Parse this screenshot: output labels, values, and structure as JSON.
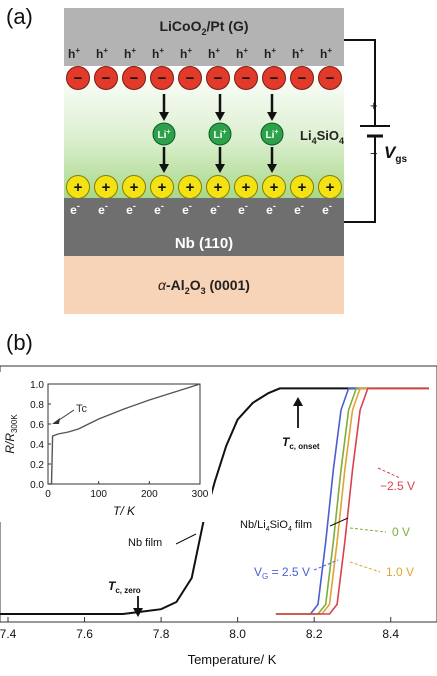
{
  "panel_a": {
    "label": "(a)",
    "top_layer": "LiCoO",
    "top_layer_sub": "2",
    "top_layer_tail": "/Pt (G)",
    "hole_glyph": "h",
    "hole_sup": "+",
    "anion_glyph": "−",
    "cation_label": "Li",
    "cation_sup": "+",
    "electrolyte": "Li",
    "electrolyte_sub": "4",
    "electrolyte_mid": "SiO",
    "electrolyte_sub2": "4",
    "cation_row_glyph": "+",
    "electron_glyph": "e",
    "electron_sup": "-",
    "channel_layer": "Nb (110)",
    "substrate_prefix": "α",
    "substrate_main": "-Al",
    "substrate_sub1": "2",
    "substrate_mid": "O",
    "substrate_sub2": "3",
    "substrate_tail": " (0001)",
    "voltage_symbol": "V",
    "voltage_sub": "gs",
    "battery_plus": "+",
    "battery_minus": "−",
    "colors": {
      "top_layer": "#b3b3b3",
      "anion": "#e23a2a",
      "cation": "#2ca14a",
      "cation_row": "#f3e315",
      "channel": "#6f6f6f",
      "substrate": "#f7d3b8"
    }
  },
  "panel_b": {
    "label": "(b)"
  },
  "chart_data": [
    {
      "type": "line",
      "title": "",
      "xlabel": "Temperature/ K",
      "ylabel": "",
      "xlim": [
        7.4,
        8.5
      ],
      "ylim": [
        0,
        1.0
      ],
      "xticks": [
        "7.4",
        "7.6",
        "7.8",
        "8.0",
        "8.2",
        "8.4"
      ],
      "xtick_values": [
        7.4,
        7.6,
        7.8,
        8.0,
        8.2,
        8.4
      ],
      "series": [
        {
          "name": "Nb film",
          "color": "#111111",
          "points": [
            [
              7.38,
              0.0
            ],
            [
              7.5,
              0.0
            ],
            [
              7.6,
              0.0
            ],
            [
              7.7,
              0.0
            ],
            [
              7.75,
              0.01
            ],
            [
              7.8,
              0.02
            ],
            [
              7.84,
              0.05
            ],
            [
              7.88,
              0.15
            ],
            [
              7.91,
              0.38
            ],
            [
              7.94,
              0.55
            ],
            [
              7.97,
              0.7
            ],
            [
              8.0,
              0.81
            ],
            [
              8.04,
              0.88
            ],
            [
              8.08,
              0.92
            ],
            [
              8.11,
              0.94
            ],
            [
              8.2,
              0.94
            ],
            [
              8.3,
              0.94
            ],
            [
              8.4,
              0.94
            ],
            [
              8.5,
              0.94
            ]
          ]
        },
        {
          "name": "V_G = 2.5 V",
          "color": "#4a5fcf",
          "points": [
            [
              8.1,
              0.0
            ],
            [
              8.19,
              0.0
            ],
            [
              8.21,
              0.04
            ],
            [
              8.23,
              0.3
            ],
            [
              8.25,
              0.6
            ],
            [
              8.27,
              0.85
            ],
            [
              8.29,
              0.94
            ],
            [
              8.5,
              0.94
            ]
          ]
        },
        {
          "name": "0 V",
          "color": "#7fae3a",
          "points": [
            [
              8.1,
              0.0
            ],
            [
              8.21,
              0.0
            ],
            [
              8.23,
              0.04
            ],
            [
              8.25,
              0.3
            ],
            [
              8.27,
              0.6
            ],
            [
              8.29,
              0.85
            ],
            [
              8.31,
              0.94
            ],
            [
              8.5,
              0.94
            ]
          ]
        },
        {
          "name": "1.0 V",
          "color": "#e0a336",
          "points": [
            [
              8.1,
              0.0
            ],
            [
              8.22,
              0.0
            ],
            [
              8.24,
              0.04
            ],
            [
              8.26,
              0.3
            ],
            [
              8.28,
              0.6
            ],
            [
              8.3,
              0.85
            ],
            [
              8.32,
              0.94
            ],
            [
              8.5,
              0.94
            ]
          ]
        },
        {
          "name": "-2.5 V",
          "color": "#d8434b",
          "points": [
            [
              8.1,
              0.0
            ],
            [
              8.24,
              0.0
            ],
            [
              8.26,
              0.04
            ],
            [
              8.28,
              0.3
            ],
            [
              8.3,
              0.6
            ],
            [
              8.32,
              0.85
            ],
            [
              8.34,
              0.94
            ],
            [
              8.5,
              0.94
            ]
          ]
        }
      ],
      "annotations": {
        "tc_onset": "T",
        "tc_onset_sub": "c, onset",
        "tc_zero": "T",
        "tc_zero_sub": "c, zero",
        "nb_film": "Nb film",
        "nb_li_film_a": "Nb/Li",
        "nb_li_film_sub1": "4",
        "nb_li_film_b": "SiO",
        "nb_li_film_sub2": "4",
        "nb_li_film_c": " film",
        "vg_label": "V",
        "vg_sub": "G",
        "vg_value": " = 2.5 V",
        "label_m25": "−2.5 V",
        "label_0": "0 V",
        "label_10": "1.0 V"
      }
    },
    {
      "type": "line",
      "title": "",
      "xlabel": "T/ K",
      "ylabel_main": "R/R",
      "ylabel_sub": "300K",
      "xlim": [
        0,
        300
      ],
      "ylim": [
        0.0,
        1.0
      ],
      "xticks": [
        "0",
        "100",
        "200",
        "300"
      ],
      "xtick_values": [
        0,
        100,
        200,
        300
      ],
      "yticks": [
        "0.0",
        "0.2",
        "0.4",
        "0.6",
        "0.8",
        "1.0"
      ],
      "ytick_values": [
        0.0,
        0.2,
        0.4,
        0.6,
        0.8,
        1.0
      ],
      "annotation": "Tc",
      "series": [
        {
          "color": "#555555",
          "points": [
            [
              0,
              0.0
            ],
            [
              7,
              0.0
            ],
            [
              9,
              0.48
            ],
            [
              20,
              0.5
            ],
            [
              40,
              0.52
            ],
            [
              60,
              0.55
            ],
            [
              80,
              0.6
            ],
            [
              100,
              0.65
            ],
            [
              150,
              0.75
            ],
            [
              200,
              0.84
            ],
            [
              250,
              0.92
            ],
            [
              300,
              1.0
            ]
          ]
        }
      ]
    }
  ]
}
